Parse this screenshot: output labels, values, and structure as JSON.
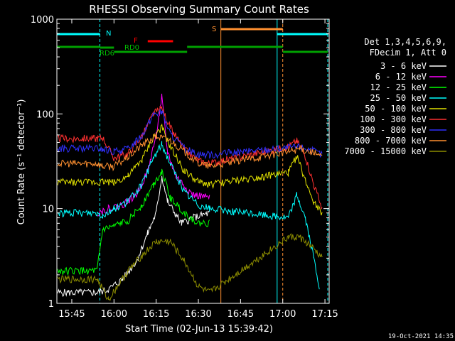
{
  "chart_data": {
    "type": "line",
    "title": "RHESSI Observing Summary Count Rates",
    "xlabel": "Start Time (02-Jun-13 15:39:42)",
    "ylabel": "Count Rate (s⁻¹ detector⁻¹)",
    "yscale": "log",
    "ylim": [
      1,
      1000
    ],
    "xlim": [
      "15:39:42",
      "17:16:30"
    ],
    "x_ticks": [
      "15:45",
      "16:00",
      "16:15",
      "16:30",
      "16:45",
      "17:00",
      "17:15"
    ],
    "y_ticks": [
      "1",
      "10",
      "100",
      "1000"
    ],
    "grid": false,
    "legend_placement": "right",
    "detector_info": [
      "Det 1,3,4,5,6,9,",
      "FDecim 1, Att 0"
    ],
    "series": [
      {
        "name": "3 - 6 keV",
        "color": "#ffffff",
        "x": [
          "15:40",
          "15:54",
          "15:58",
          "16:03",
          "16:08",
          "16:12",
          "16:15",
          "16:17",
          "16:19",
          "16:24",
          "16:28",
          "16:34"
        ],
        "y": [
          1.3,
          1.3,
          1.4,
          1.8,
          2.8,
          5.5,
          9,
          22,
          12,
          7,
          8,
          9
        ]
      },
      {
        "name": "6 - 12 keV",
        "color": "#ff00ff",
        "x": [
          "15:54",
          "15:58",
          "16:03",
          "16:08",
          "16:12",
          "16:15",
          "16:17",
          "16:19",
          "16:22",
          "16:28",
          "16:34"
        ],
        "y": [
          9,
          10,
          11,
          14,
          25,
          60,
          150,
          40,
          22,
          14,
          13
        ]
      },
      {
        "name": "12 - 25 keV",
        "color": "#00ff00",
        "x": [
          "15:40",
          "15:54",
          "15:56",
          "16:00",
          "16:05",
          "16:10",
          "16:14",
          "16:17",
          "16:20",
          "16:25",
          "16:30",
          "16:34"
        ],
        "y": [
          2.2,
          2.2,
          6,
          6.5,
          7.5,
          11,
          18,
          25,
          13,
          9,
          7,
          7
        ]
      },
      {
        "name": "25 - 50 keV",
        "color": "#00ffff",
        "x": [
          "15:40",
          "15:54",
          "15:56",
          "16:00",
          "16:05",
          "16:10",
          "16:14",
          "16:17",
          "16:20",
          "16:25",
          "16:30",
          "16:34",
          "17:02",
          "17:05",
          "17:08",
          "17:11",
          "17:13"
        ],
        "y": [
          9,
          9,
          8.5,
          10,
          12,
          18,
          34,
          48,
          30,
          15,
          11,
          10,
          8,
          14,
          8,
          3,
          1.5
        ]
      },
      {
        "name": "50 - 100 keV",
        "color": "#e0e000",
        "x": [
          "15:40",
          "15:54",
          "15:56",
          "16:00",
          "16:05",
          "16:10",
          "16:14",
          "16:17",
          "16:20",
          "16:25",
          "16:30",
          "16:34",
          "17:02",
          "17:05",
          "17:08",
          "17:11",
          "17:14"
        ],
        "y": [
          19,
          19,
          19.5,
          19,
          22,
          33,
          57,
          72,
          45,
          25,
          19,
          18,
          24,
          36,
          20,
          12,
          9
        ]
      },
      {
        "name": "100 - 300 keV",
        "color": "#ff3030",
        "x": [
          "15:40",
          "15:54",
          "15:56",
          "16:00",
          "16:05",
          "16:10",
          "16:14",
          "16:17",
          "16:20",
          "16:25",
          "16:30",
          "16:34",
          "17:02",
          "17:05",
          "17:08",
          "17:11",
          "17:14"
        ],
        "y": [
          55,
          55,
          56,
          34,
          38,
          58,
          100,
          115,
          72,
          42,
          32,
          30,
          45,
          52,
          36,
          18,
          10
        ]
      },
      {
        "name": "300 - 800 keV",
        "color": "#3030ff",
        "x": [
          "15:40",
          "15:54",
          "15:56",
          "16:00",
          "16:05",
          "16:10",
          "16:14",
          "16:17",
          "16:20",
          "16:25",
          "16:30",
          "16:34",
          "17:02",
          "17:06",
          "17:10",
          "17:14"
        ],
        "y": [
          43,
          43,
          42,
          40,
          43,
          60,
          100,
          105,
          62,
          43,
          38,
          37,
          44,
          45,
          42,
          37
        ]
      },
      {
        "name": "800 - 7000 keV",
        "color": "#ff9030",
        "x": [
          "15:40",
          "15:54",
          "15:56",
          "16:00",
          "16:05",
          "16:10",
          "16:15",
          "16:20",
          "16:25",
          "16:30",
          "16:34",
          "17:02",
          "17:06",
          "17:10",
          "17:14"
        ],
        "y": [
          30,
          30,
          28,
          28,
          35,
          47,
          58,
          53,
          40,
          30,
          28,
          40,
          43,
          40,
          35
        ]
      },
      {
        "name": "7000 - 15000 keV",
        "color": "#8c8c00",
        "x": [
          "15:40",
          "15:54",
          "15:58",
          "16:05",
          "16:10",
          "16:15",
          "16:20",
          "16:25",
          "16:30",
          "16:34",
          "17:02",
          "17:06",
          "17:10",
          "17:14"
        ],
        "y": [
          1.8,
          1.8,
          1.1,
          2.2,
          3.2,
          4.5,
          4.5,
          2.8,
          1.5,
          1.3,
          5,
          5,
          4,
          3
        ]
      }
    ],
    "annotations": [
      {
        "text": "N",
        "color": "#00ffff"
      },
      {
        "text": "F",
        "color": "#ff0000"
      },
      {
        "text": "S",
        "color": "#ff9030"
      },
      {
        "text": "RD0",
        "color": "#00c000"
      },
      {
        "text": "RD6",
        "color": "#00c000"
      }
    ],
    "footer_timestamp": "19-Oct-2021 14:35"
  }
}
